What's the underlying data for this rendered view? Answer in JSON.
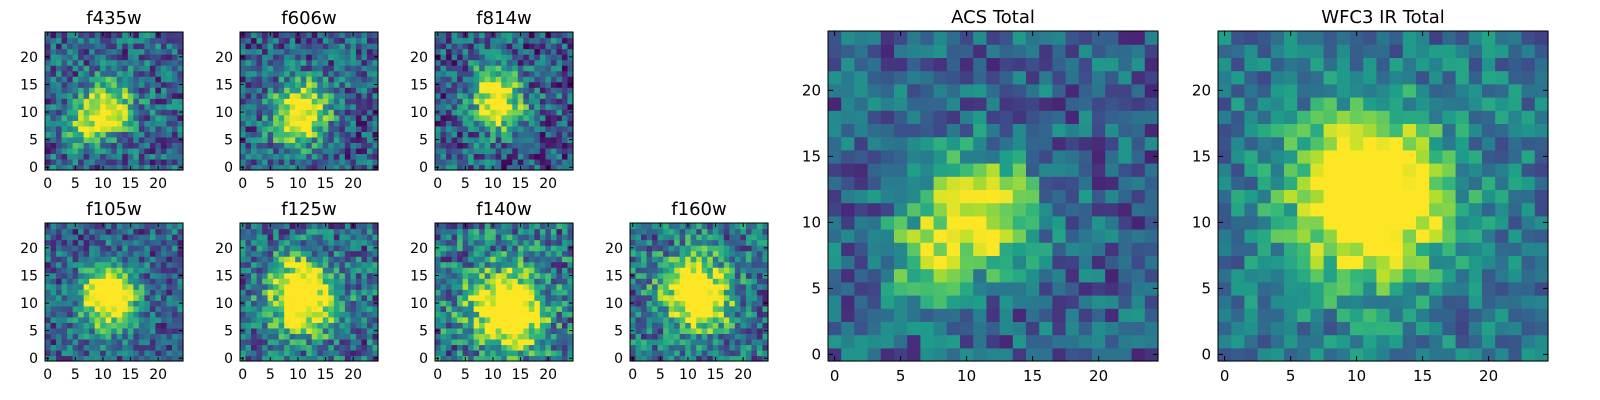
{
  "figure": {
    "colormap": "viridis",
    "background": "#ffffff",
    "axis_color": "#000000"
  },
  "chart_data": [
    {
      "type": "heatmap",
      "title": "f435w",
      "xlabel": "",
      "ylabel": "",
      "xlim": [
        0,
        25
      ],
      "ylim": [
        0,
        25
      ],
      "xticks": [
        0,
        5,
        10,
        15,
        20
      ],
      "yticks": [
        0,
        5,
        10,
        15,
        20
      ],
      "grid": false,
      "peak": [
        11,
        11
      ],
      "secondary_peak": [
        7,
        7
      ],
      "spread": 3.2,
      "noise": 0.28,
      "background_level": 0.45
    },
    {
      "type": "heatmap",
      "title": "f606w",
      "xlabel": "",
      "ylabel": "",
      "xlim": [
        0,
        25
      ],
      "ylim": [
        0,
        25
      ],
      "xticks": [
        0,
        5,
        10,
        15,
        20
      ],
      "yticks": [
        0,
        5,
        10,
        15,
        20
      ],
      "grid": false,
      "peak": [
        11,
        11
      ],
      "secondary_peak": [
        9,
        7
      ],
      "spread": 3.5,
      "noise": 0.28,
      "background_level": 0.42
    },
    {
      "type": "heatmap",
      "title": "f814w",
      "xlabel": "",
      "ylabel": "",
      "xlim": [
        0,
        25
      ],
      "ylim": [
        0,
        25
      ],
      "xticks": [
        0,
        5,
        10,
        15,
        20
      ],
      "yticks": [
        0,
        5,
        10,
        15,
        20
      ],
      "grid": false,
      "peak": [
        11,
        11
      ],
      "secondary_peak": [
        10,
        16
      ],
      "spread": 3.2,
      "noise": 0.3,
      "background_level": 0.42
    },
    {
      "type": "heatmap",
      "title": "f105w",
      "xlabel": "",
      "ylabel": "",
      "xlim": [
        0,
        25
      ],
      "ylim": [
        0,
        25
      ],
      "xticks": [
        0,
        5,
        10,
        15,
        20
      ],
      "yticks": [
        0,
        5,
        10,
        15,
        20
      ],
      "grid": false,
      "peak": [
        11,
        10
      ],
      "secondary_peak": [
        11,
        14
      ],
      "spread": 3.6,
      "noise": 0.26,
      "background_level": 0.45
    },
    {
      "type": "heatmap",
      "title": "f125w",
      "xlabel": "",
      "ylabel": "",
      "xlim": [
        0,
        25
      ],
      "ylim": [
        0,
        25
      ],
      "xticks": [
        0,
        5,
        10,
        15,
        20
      ],
      "yticks": [
        0,
        5,
        10,
        15,
        20
      ],
      "grid": false,
      "peak": [
        11,
        10
      ],
      "secondary_peak": [
        10,
        14
      ],
      "spread": 4.2,
      "noise": 0.3,
      "background_level": 0.5
    },
    {
      "type": "heatmap",
      "title": "f140w",
      "xlabel": "",
      "ylabel": "",
      "xlim": [
        0,
        25
      ],
      "ylim": [
        0,
        25
      ],
      "xticks": [
        0,
        5,
        10,
        15,
        20
      ],
      "yticks": [
        0,
        5,
        10,
        15,
        20
      ],
      "grid": false,
      "peak": [
        12,
        10
      ],
      "secondary_peak": [
        14,
        6
      ],
      "spread": 4.5,
      "noise": 0.32,
      "background_level": 0.55
    },
    {
      "type": "heatmap",
      "title": "f160w",
      "xlabel": "",
      "ylabel": "",
      "xlim": [
        0,
        25
      ],
      "ylim": [
        0,
        25
      ],
      "xticks": [
        0,
        5,
        10,
        15,
        20
      ],
      "yticks": [
        0,
        5,
        10,
        15,
        20
      ],
      "grid": false,
      "peak": [
        11,
        13
      ],
      "secondary_peak": [
        13,
        9
      ],
      "spread": 4.2,
      "noise": 0.3,
      "background_level": 0.52
    },
    {
      "type": "heatmap",
      "title": "ACS Total",
      "xlabel": "",
      "ylabel": "",
      "xlim": [
        0,
        25
      ],
      "ylim": [
        0,
        25
      ],
      "xticks": [
        0,
        5,
        10,
        15,
        20
      ],
      "yticks": [
        0,
        5,
        10,
        15,
        20
      ],
      "grid": false,
      "peak": [
        11,
        11
      ],
      "secondary_peak": [
        7,
        7
      ],
      "spread": 3.0,
      "noise": 0.22,
      "background_level": 0.45
    },
    {
      "type": "heatmap",
      "title": "WFC3 IR Total",
      "xlabel": "",
      "ylabel": "",
      "xlim": [
        0,
        25
      ],
      "ylim": [
        0,
        25
      ],
      "xticks": [
        0,
        5,
        10,
        15,
        20
      ],
      "yticks": [
        0,
        5,
        10,
        15,
        20
      ],
      "grid": false,
      "peak": [
        11,
        11
      ],
      "secondary_peak": [
        11,
        14
      ],
      "spread": 4.2,
      "noise": 0.2,
      "background_level": 0.55
    }
  ]
}
